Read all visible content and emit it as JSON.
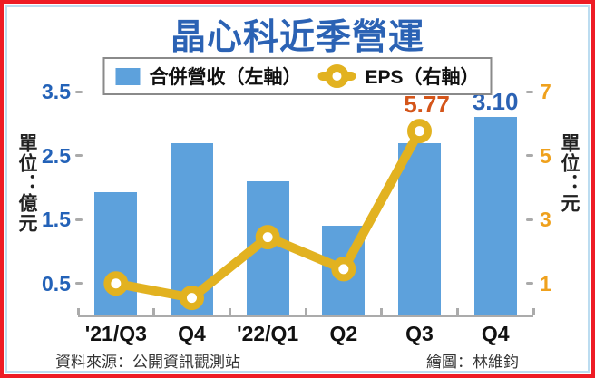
{
  "title": "晶心科近季營運",
  "legend": {
    "revenue_label": "合併營收（左軸）",
    "eps_label": "EPS（右軸）"
  },
  "left_axis": {
    "unit_label": "單位：億元",
    "ticks": [
      3.5,
      2.5,
      1.5,
      0.5
    ],
    "color": "#2362b8"
  },
  "right_axis": {
    "unit_label": "單位：元",
    "ticks": [
      7,
      5,
      3,
      1
    ],
    "color": "#efa11d"
  },
  "footer": {
    "source": "資料來源：公開資訊觀測站",
    "credit": "繪圖：林維鈞"
  },
  "frame_colors": {
    "outer_border": "#ee1c25",
    "inner_border": "#bcdcf0"
  },
  "chart_data": {
    "type": "bar+line",
    "title": "晶心科近季營運",
    "categories": [
      "'21/Q3",
      "Q4",
      "'22/Q1",
      "Q2",
      "Q3",
      "Q4"
    ],
    "series": [
      {
        "name": "合併營收（左軸）",
        "type": "bar",
        "axis": "left",
        "color": "#5da1dc",
        "values": [
          1.93,
          2.7,
          2.1,
          1.4,
          2.7,
          3.1
        ]
      },
      {
        "name": "EPS（右軸）",
        "type": "line",
        "axis": "right",
        "color": "#e2b220",
        "values": [
          1.0,
          0.55,
          2.45,
          1.45,
          5.77,
          null
        ]
      }
    ],
    "data_labels": [
      {
        "text": "5.77",
        "series": 1,
        "index": 4,
        "color": "#d4551a"
      },
      {
        "text": "3.10",
        "series": 0,
        "index": 5,
        "color": "#2b62b4"
      }
    ],
    "left_ylim": [
      0,
      3.55
    ],
    "right_ylim": [
      0,
      7.1
    ],
    "legend_position": "top",
    "grid": false
  }
}
